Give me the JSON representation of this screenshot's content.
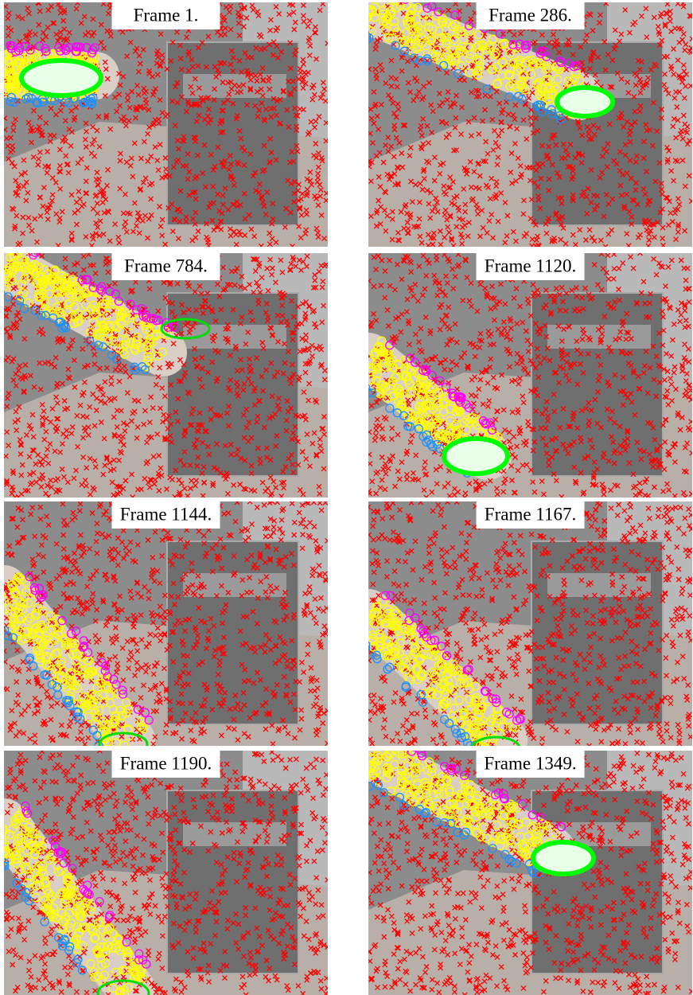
{
  "panels": [
    {
      "caption": "Frame 1."
    },
    {
      "caption": "Frame 286."
    },
    {
      "caption": "Frame 784."
    },
    {
      "caption": "Frame 1120."
    },
    {
      "caption": "Frame 1144."
    },
    {
      "caption": "Frame 1167."
    },
    {
      "caption": "Frame 1190."
    },
    {
      "caption": "Frame 1349."
    }
  ]
}
